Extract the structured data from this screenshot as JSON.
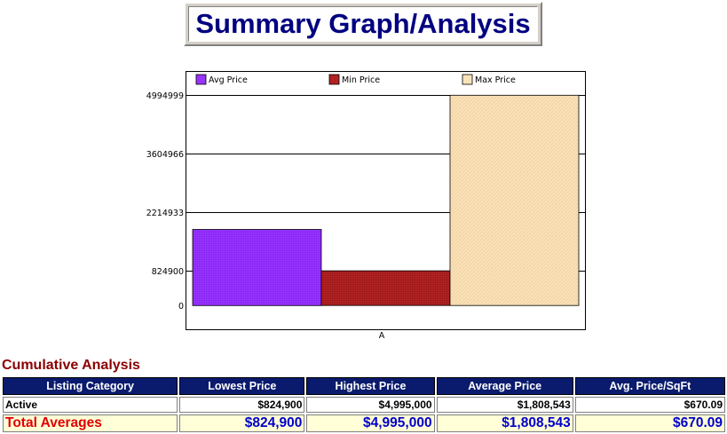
{
  "page": {
    "title": "Summary Graph/Analysis"
  },
  "chart_data": {
    "type": "bar",
    "categories": [
      "A"
    ],
    "series": [
      {
        "name": "Avg Price",
        "values": [
          1808543
        ],
        "color": "#9933ff"
      },
      {
        "name": "Min Price",
        "values": [
          824900
        ],
        "color": "#b22222"
      },
      {
        "name": "Max Price",
        "values": [
          4995000
        ],
        "color": "#fae2b8"
      }
    ],
    "y_ticks": [
      "0",
      "824900",
      "2214933",
      "3604966",
      "4994999"
    ],
    "y_tick_values": [
      0,
      824900,
      2214933,
      3604966,
      4994999
    ],
    "ylim": [
      -564133,
      5550000
    ],
    "grid": true,
    "legend": "top"
  },
  "analysis": {
    "title": "Cumulative Analysis",
    "columns": [
      "Listing Category",
      "Lowest Price",
      "Highest Price",
      "Average Price",
      "Avg. Price/SqFt"
    ],
    "rows": [
      {
        "category": "Active",
        "lowest": "$824,900",
        "highest": "$4,995,000",
        "average": "$1,808,543",
        "per_sqft": "$670.09"
      }
    ],
    "total": {
      "category": "Total Averages",
      "lowest": "$824,900",
      "highest": "$4,995,000",
      "average": "$1,808,543",
      "per_sqft": "$670.09"
    }
  }
}
